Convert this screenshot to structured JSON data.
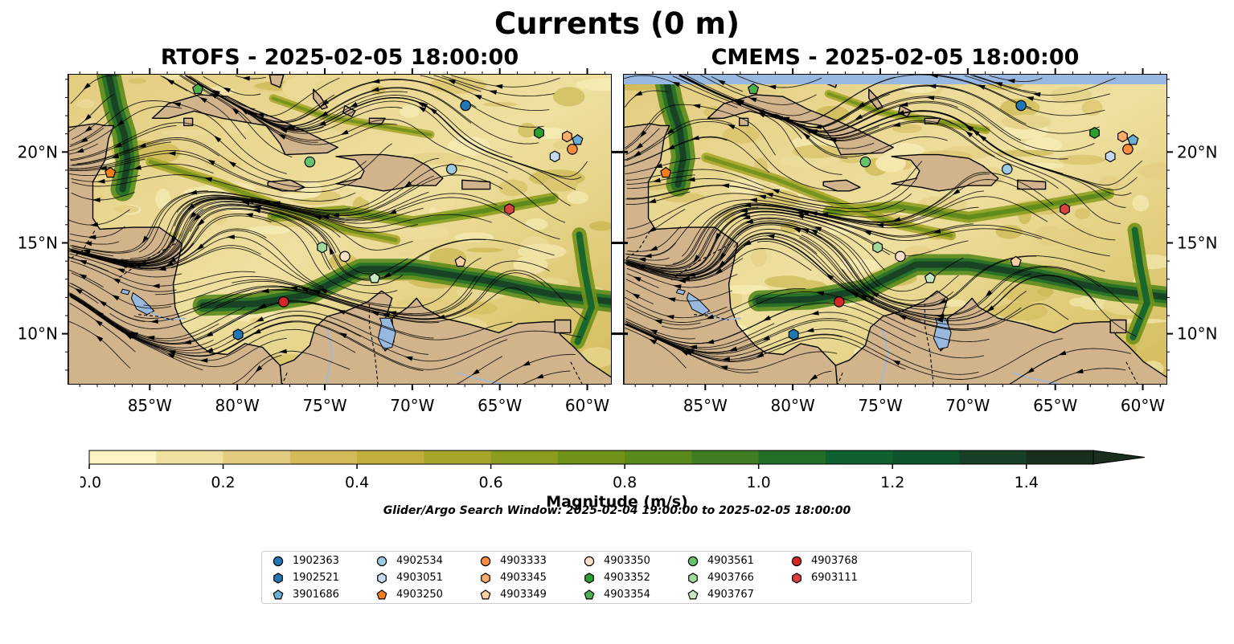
{
  "title": "Currents (0 m)",
  "panels": [
    {
      "id": "rtofs",
      "title": "RTOFS - 2025-02-05 18:00:00"
    },
    {
      "id": "cmems",
      "title": "CMEMS - 2025-02-05 18:00:00"
    }
  ],
  "axes": {
    "x_ticks": [
      "85°W",
      "80°W",
      "75°W",
      "70°W",
      "65°W",
      "60°W"
    ],
    "x_values": [
      -85,
      -80,
      -75,
      -70,
      -65,
      -60
    ],
    "y_ticks": [
      "20°N",
      "15°N",
      "10°N"
    ],
    "y_values": [
      20,
      15,
      10
    ],
    "lon_range": [
      -89.7,
      -58.6
    ],
    "lat_range": [
      7.2,
      24.3
    ]
  },
  "colorbar": {
    "label": "Magnitude (m/s)",
    "ticks": [
      "0.0",
      "0.2",
      "0.4",
      "0.6",
      "0.8",
      "1.0",
      "1.2",
      "1.4"
    ],
    "tick_values": [
      0.0,
      0.2,
      0.4,
      0.6,
      0.8,
      1.0,
      1.2,
      1.4
    ],
    "range": [
      0.0,
      1.5
    ],
    "extend": "max",
    "colors": [
      "#fbf3c1",
      "#efe0a0",
      "#e3cc7f",
      "#d3bb5a",
      "#c2ae3c",
      "#a7a62a",
      "#8c9d1e",
      "#719219",
      "#5a8a1c",
      "#3f7e22",
      "#236f27",
      "#0f6230",
      "#0e532b",
      "#163f26",
      "#1a2e1d"
    ]
  },
  "colors": {
    "land": "#d2b48c",
    "lake": "#98b8e0",
    "ocean_low": "#efe0a0"
  },
  "search_window": "Glider/Argo Search Window: 2025-02-04 19:00:00 to 2025-02-05 18:00:00",
  "floats": [
    {
      "id": "1902363",
      "marker": "circle",
      "color": "#1f77b4",
      "lon": -67.0,
      "lat": 22.6
    },
    {
      "id": "1902521",
      "marker": "hexagon",
      "color": "#1f77b4",
      "lon": -80.0,
      "lat": 10.0
    },
    {
      "id": "3901686",
      "marker": "pentagon",
      "color": "#6baed6",
      "lon": -60.6,
      "lat": 20.7
    },
    {
      "id": "4902534",
      "marker": "circle",
      "color": "#9ecae1",
      "lon": -67.8,
      "lat": 19.1
    },
    {
      "id": "4903051",
      "marker": "hexagon",
      "color": "#c6dbef",
      "lon": -61.9,
      "lat": 19.8
    },
    {
      "id": "4903250",
      "marker": "pentagon",
      "color": "#f57f17",
      "lon": -87.3,
      "lat": 18.9
    },
    {
      "id": "4903333",
      "marker": "circle",
      "color": "#fd8d3c",
      "lon": -60.9,
      "lat": 20.2
    },
    {
      "id": "4903345",
      "marker": "hexagon",
      "color": "#fdae6b",
      "lon": -61.2,
      "lat": 20.9
    },
    {
      "id": "4903349",
      "marker": "pentagon",
      "color": "#fdd0a2",
      "lon": -67.3,
      "lat": 14.0
    },
    {
      "id": "4903350",
      "marker": "circle",
      "color": "#fde0c6",
      "lon": -73.9,
      "lat": 14.3
    },
    {
      "id": "4903352",
      "marker": "hexagon",
      "color": "#2ca02c",
      "lon": -62.8,
      "lat": 21.1
    },
    {
      "id": "4903354",
      "marker": "pentagon",
      "color": "#4cb050",
      "lon": -82.3,
      "lat": 23.5
    },
    {
      "id": "4903561",
      "marker": "circle",
      "color": "#66c36b",
      "lon": -75.9,
      "lat": 19.5
    },
    {
      "id": "4903766",
      "marker": "hexagon",
      "color": "#a1d99b",
      "lon": -75.2,
      "lat": 14.8
    },
    {
      "id": "4903767",
      "marker": "pentagon",
      "color": "#c7e9c0",
      "lon": -72.2,
      "lat": 13.1
    },
    {
      "id": "4903768",
      "marker": "circle",
      "color": "#d62728",
      "lon": -77.4,
      "lat": 11.8
    },
    {
      "id": "6903111",
      "marker": "hexagon",
      "color": "#d9423f",
      "lon": -64.5,
      "lat": 16.9
    }
  ]
}
